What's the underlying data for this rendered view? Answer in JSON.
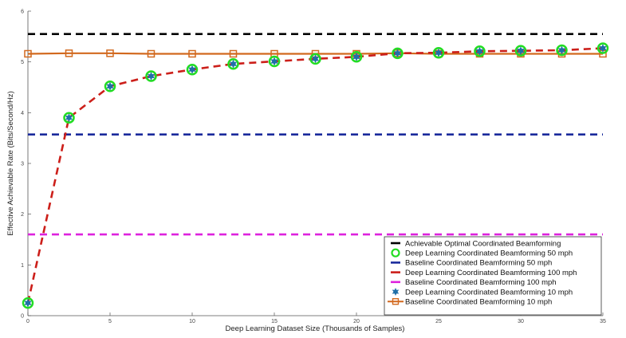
{
  "chart_data": {
    "type": "line",
    "title": "",
    "xlabel": "Deep Learning Dataset Size (Thousands of Samples)",
    "ylabel": "Effective Achievable Rate (Bits/Second/Hz)",
    "xlim": [
      0,
      35
    ],
    "ylim": [
      0,
      6
    ],
    "xticks": [
      0,
      5,
      10,
      15,
      20,
      25,
      30,
      35
    ],
    "yticks": [
      0,
      1,
      2,
      3,
      4,
      5,
      6
    ],
    "grid": false,
    "legend_position": "bottom-right",
    "series": [
      {
        "name": "Achievable Optimal Coordinated Beamforming",
        "style": "dashed",
        "color": "#000000",
        "x": [
          0,
          35
        ],
        "y": [
          5.55,
          5.55
        ]
      },
      {
        "name": "Deep Learning Coordinated Beamforming 50 mph",
        "style": "circle-markers",
        "color": "#22dd22",
        "x": [
          0,
          2.5,
          5,
          7.5,
          10,
          12.5,
          15,
          17.5,
          20,
          22.5,
          25,
          27.5,
          30,
          32.5,
          35
        ],
        "y": [
          0.25,
          3.9,
          4.52,
          4.72,
          4.85,
          4.96,
          5.01,
          5.06,
          5.1,
          5.17,
          5.18,
          5.21,
          5.22,
          5.23,
          5.27
        ]
      },
      {
        "name": "Baseline Coordinated Beamforming 50 mph",
        "style": "dashed",
        "color": "#1a2a9c",
        "x": [
          0,
          35
        ],
        "y": [
          3.57,
          3.57
        ]
      },
      {
        "name": "Deep Learning Coordinated Beamforming 100 mph",
        "style": "dashed",
        "color": "#cc1f1a",
        "x": [
          0,
          2.5,
          5,
          7.5,
          10,
          12.5,
          15,
          17.5,
          20,
          22.5,
          25,
          27.5,
          30,
          32.5,
          35
        ],
        "y": [
          0.25,
          3.9,
          4.52,
          4.72,
          4.85,
          4.96,
          5.01,
          5.06,
          5.1,
          5.17,
          5.18,
          5.21,
          5.22,
          5.23,
          5.27
        ]
      },
      {
        "name": "Baseline Coordinated Beamforming 100 mph",
        "style": "dashed",
        "color": "#dd22dd",
        "x": [
          0,
          35
        ],
        "y": [
          1.6,
          1.6
        ]
      },
      {
        "name": "Deep Learning Coordinated Beamforming 10 mph",
        "style": "star-markers",
        "color": "#1f6fa8",
        "x": [
          0,
          2.5,
          5,
          7.5,
          10,
          12.5,
          15,
          17.5,
          20,
          22.5,
          25,
          27.5,
          30,
          32.5,
          35
        ],
        "y": [
          0.25,
          3.9,
          4.52,
          4.72,
          4.85,
          4.96,
          5.01,
          5.06,
          5.1,
          5.17,
          5.18,
          5.21,
          5.22,
          5.23,
          5.27
        ]
      },
      {
        "name": "Baseline Coordinated Beamforming 10 mph",
        "style": "line-square-markers",
        "color": "#d2691e",
        "x": [
          0,
          2.5,
          5,
          7.5,
          10,
          12.5,
          15,
          17.5,
          20,
          22.5,
          25,
          27.5,
          30,
          32.5,
          35
        ],
        "y": [
          5.16,
          5.17,
          5.17,
          5.16,
          5.16,
          5.16,
          5.16,
          5.16,
          5.16,
          5.17,
          5.16,
          5.16,
          5.16,
          5.16,
          5.16
        ]
      }
    ]
  }
}
